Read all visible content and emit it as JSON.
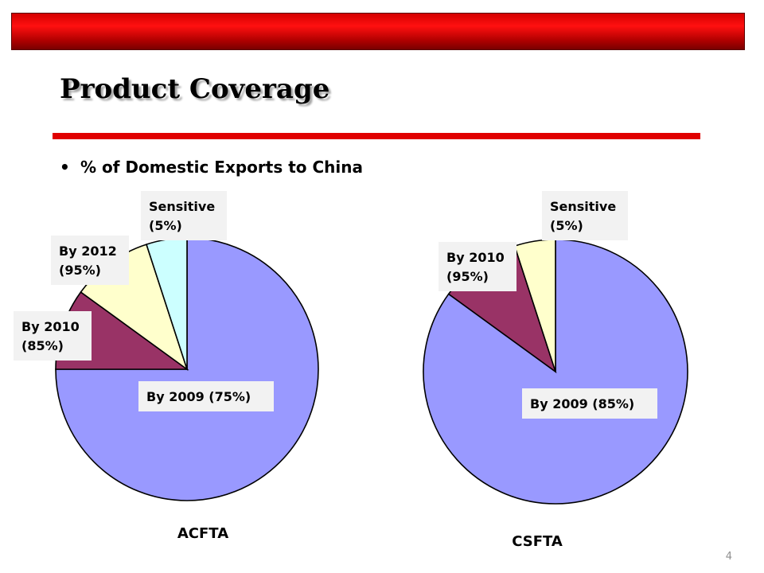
{
  "slide": {
    "title": "Product Coverage",
    "bullet_marker": "•",
    "bullet_text": "% of Domestic Exports to China",
    "page_number": "4"
  },
  "colors": {
    "top_bar": "#c00000",
    "title_rule": "#e00000",
    "label_background": "#f2f2f2"
  },
  "chart_data": [
    {
      "type": "pie",
      "title": "ACFTA",
      "slices": [
        {
          "label": "By 2009 (75%)",
          "value": 75,
          "color": "#9999ff"
        },
        {
          "label": "By 2010\n(85%)",
          "value": 10,
          "color": "#993366"
        },
        {
          "label": "By 2012\n(95%)",
          "value": 10,
          "color": "#ffffcc"
        },
        {
          "label": "Sensitive\n(5%)",
          "value": 5,
          "color": "#ccffff"
        }
      ]
    },
    {
      "type": "pie",
      "title": "CSFTA",
      "slices": [
        {
          "label": "By 2009 (85%)",
          "value": 85,
          "color": "#9999ff"
        },
        {
          "label": "By 2010\n(95%)",
          "value": 10,
          "color": "#993366"
        },
        {
          "label": "Sensitive\n(5%)",
          "value": 5,
          "color": "#ffffcc"
        }
      ]
    }
  ]
}
